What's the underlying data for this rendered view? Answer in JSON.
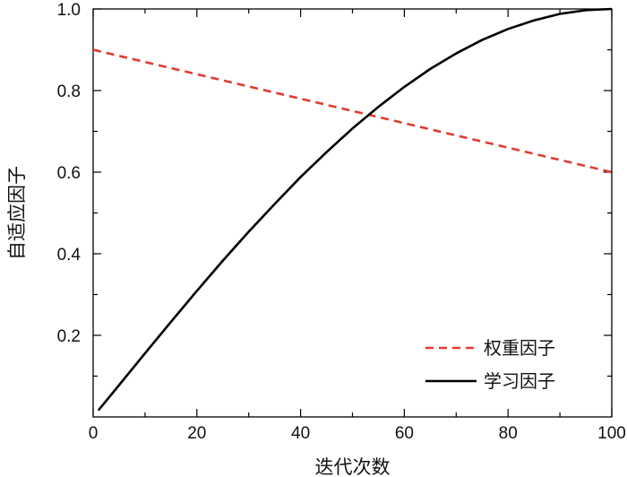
{
  "chart_data": {
    "type": "line",
    "xlabel": "迭代次数",
    "ylabel": "自适应因子",
    "xlim": [
      0,
      100
    ],
    "ylim": [
      0,
      1.0
    ],
    "x_ticks": [
      0,
      20,
      40,
      60,
      80,
      100
    ],
    "y_ticks": [
      0.2,
      0.4,
      0.6,
      0.8,
      1.0
    ],
    "y_tick_labels": [
      "0.2",
      "0.4",
      "0.6",
      "0.8",
      "1.0"
    ],
    "grid": false,
    "legend_position": "bottom-right",
    "series": [
      {
        "name": "权重因子",
        "style": "dashed",
        "color": "#e03c31",
        "x": [
          0,
          100
        ],
        "y": [
          0.9,
          0.6
        ]
      },
      {
        "name": "学习因子",
        "style": "solid",
        "color": "#000000",
        "x": [
          1,
          5,
          10,
          15,
          20,
          25,
          30,
          35,
          40,
          45,
          50,
          55,
          60,
          65,
          70,
          75,
          80,
          85,
          90,
          95,
          100
        ],
        "y": [
          0.016,
          0.078,
          0.156,
          0.233,
          0.309,
          0.383,
          0.454,
          0.522,
          0.588,
          0.649,
          0.707,
          0.76,
          0.809,
          0.853,
          0.891,
          0.924,
          0.951,
          0.972,
          0.988,
          0.997,
          1.0
        ]
      }
    ]
  }
}
